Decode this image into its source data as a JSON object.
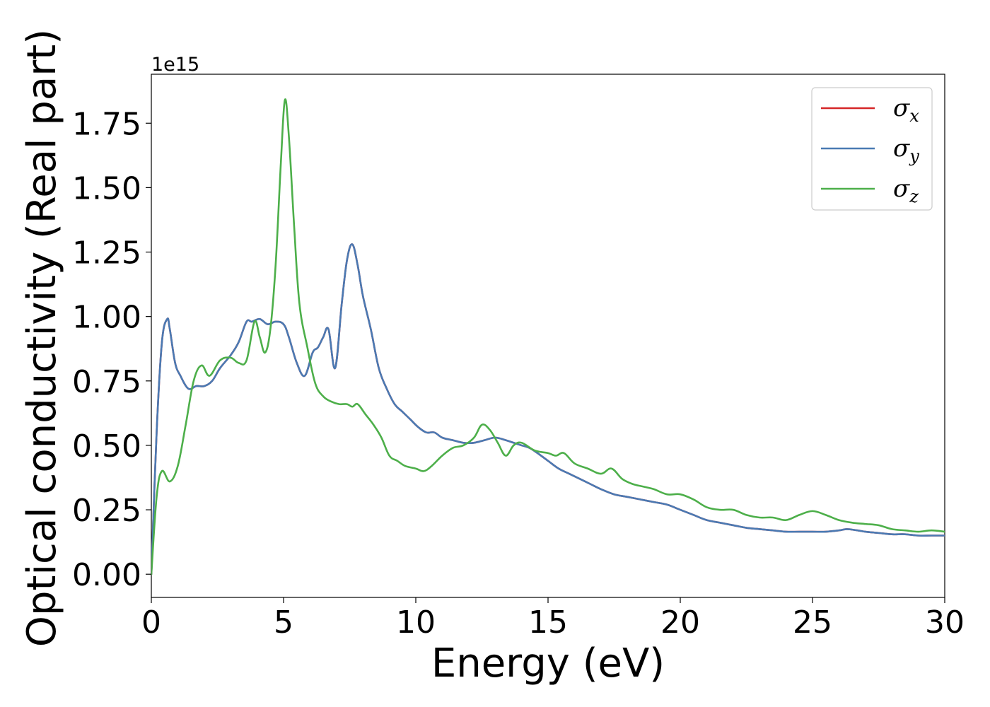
{
  "chart_data": {
    "type": "line",
    "title": "",
    "xlabel": "Energy (eV)",
    "ylabel": "Optical conductivity (Real part)",
    "y_offset_label": "1e15",
    "xlim": [
      0,
      30
    ],
    "ylim": [
      -0.09,
      1.94
    ],
    "y_multiplier": 1000000000000000.0,
    "grid": false,
    "legend_position": "top-right",
    "x_ticks": [
      0,
      5,
      10,
      15,
      20,
      25,
      30
    ],
    "x_tick_labels": [
      "0",
      "5",
      "10",
      "15",
      "20",
      "25",
      "30"
    ],
    "y_ticks": [
      0.0,
      0.25,
      0.5,
      0.75,
      1.0,
      1.25,
      1.5,
      1.75
    ],
    "y_tick_labels": [
      "0.00",
      "0.25",
      "0.50",
      "0.75",
      "1.00",
      "1.25",
      "1.50",
      "1.75"
    ],
    "series": [
      {
        "name": "σ",
        "subscript": "x",
        "color": "#d62728",
        "x": [
          0,
          0.2,
          0.4,
          0.6,
          0.7,
          0.9,
          1.1,
          1.4,
          1.7,
          2.0,
          2.3,
          2.6,
          3.0,
          3.3,
          3.6,
          3.8,
          4.1,
          4.4,
          4.7,
          5.0,
          5.2,
          5.5,
          5.8,
          6.1,
          6.3,
          6.5,
          6.7,
          6.95,
          7.2,
          7.4,
          7.6,
          7.8,
          8.0,
          8.3,
          8.6,
          8.9,
          9.2,
          9.5,
          9.8,
          10.1,
          10.4,
          10.7,
          11.0,
          11.4,
          11.8,
          12.2,
          12.6,
          13.0,
          13.4,
          13.7,
          14.0,
          14.3,
          14.6,
          15.0,
          15.4,
          15.8,
          16.2,
          16.6,
          17.0,
          17.5,
          18.0,
          18.5,
          19.0,
          19.5,
          20.0,
          20.5,
          21.0,
          21.5,
          22.0,
          22.5,
          23.0,
          23.5,
          24.0,
          24.5,
          25.0,
          25.5,
          26.0,
          26.3,
          26.7,
          27.0,
          27.5,
          28.0,
          28.5,
          29.0,
          29.5,
          30.0
        ],
        "y": [
          0.0,
          0.55,
          0.9,
          0.99,
          0.95,
          0.82,
          0.77,
          0.72,
          0.73,
          0.73,
          0.75,
          0.8,
          0.85,
          0.9,
          0.98,
          0.98,
          0.99,
          0.97,
          0.98,
          0.97,
          0.92,
          0.82,
          0.77,
          0.86,
          0.88,
          0.92,
          0.95,
          0.8,
          1.05,
          1.22,
          1.28,
          1.2,
          1.08,
          0.95,
          0.8,
          0.72,
          0.66,
          0.63,
          0.6,
          0.57,
          0.55,
          0.55,
          0.53,
          0.52,
          0.51,
          0.51,
          0.52,
          0.53,
          0.52,
          0.51,
          0.5,
          0.49,
          0.47,
          0.44,
          0.41,
          0.39,
          0.37,
          0.35,
          0.33,
          0.31,
          0.3,
          0.29,
          0.28,
          0.27,
          0.25,
          0.23,
          0.21,
          0.2,
          0.19,
          0.18,
          0.175,
          0.17,
          0.165,
          0.165,
          0.165,
          0.165,
          0.17,
          0.175,
          0.17,
          0.165,
          0.16,
          0.155,
          0.155,
          0.15,
          0.15,
          0.15
        ]
      },
      {
        "name": "σ",
        "subscript": "y",
        "color": "#4a7ab3",
        "x": [
          0,
          0.2,
          0.4,
          0.6,
          0.7,
          0.9,
          1.1,
          1.4,
          1.7,
          2.0,
          2.3,
          2.6,
          3.0,
          3.3,
          3.6,
          3.8,
          4.1,
          4.4,
          4.7,
          5.0,
          5.2,
          5.5,
          5.8,
          6.1,
          6.3,
          6.5,
          6.7,
          6.95,
          7.2,
          7.4,
          7.6,
          7.8,
          8.0,
          8.3,
          8.6,
          8.9,
          9.2,
          9.5,
          9.8,
          10.1,
          10.4,
          10.7,
          11.0,
          11.4,
          11.8,
          12.2,
          12.6,
          13.0,
          13.4,
          13.7,
          14.0,
          14.3,
          14.6,
          15.0,
          15.4,
          15.8,
          16.2,
          16.6,
          17.0,
          17.5,
          18.0,
          18.5,
          19.0,
          19.5,
          20.0,
          20.5,
          21.0,
          21.5,
          22.0,
          22.5,
          23.0,
          23.5,
          24.0,
          24.5,
          25.0,
          25.5,
          26.0,
          26.3,
          26.7,
          27.0,
          27.5,
          28.0,
          28.5,
          29.0,
          29.5,
          30.0
        ],
        "y": [
          0.0,
          0.55,
          0.9,
          0.99,
          0.95,
          0.82,
          0.77,
          0.72,
          0.73,
          0.73,
          0.75,
          0.8,
          0.85,
          0.9,
          0.98,
          0.98,
          0.99,
          0.97,
          0.98,
          0.97,
          0.92,
          0.82,
          0.77,
          0.86,
          0.88,
          0.92,
          0.95,
          0.8,
          1.05,
          1.22,
          1.28,
          1.2,
          1.08,
          0.95,
          0.8,
          0.72,
          0.66,
          0.63,
          0.6,
          0.57,
          0.55,
          0.55,
          0.53,
          0.52,
          0.51,
          0.51,
          0.52,
          0.53,
          0.52,
          0.51,
          0.5,
          0.49,
          0.47,
          0.44,
          0.41,
          0.39,
          0.37,
          0.35,
          0.33,
          0.31,
          0.3,
          0.29,
          0.28,
          0.27,
          0.25,
          0.23,
          0.21,
          0.2,
          0.19,
          0.18,
          0.175,
          0.17,
          0.165,
          0.165,
          0.165,
          0.165,
          0.17,
          0.175,
          0.17,
          0.165,
          0.16,
          0.155,
          0.155,
          0.15,
          0.15,
          0.15
        ]
      },
      {
        "name": "σ",
        "subscript": "z",
        "color": "#4daf4a",
        "x": [
          0,
          0.2,
          0.4,
          0.7,
          1.0,
          1.3,
          1.6,
          1.9,
          2.2,
          2.6,
          3.0,
          3.3,
          3.6,
          3.9,
          4.1,
          4.3,
          4.5,
          4.7,
          4.9,
          5.05,
          5.2,
          5.4,
          5.6,
          5.9,
          6.2,
          6.5,
          6.8,
          7.1,
          7.4,
          7.6,
          7.8,
          8.1,
          8.4,
          8.7,
          9.0,
          9.3,
          9.6,
          10.0,
          10.3,
          10.6,
          11.0,
          11.4,
          11.8,
          12.2,
          12.5,
          12.8,
          13.1,
          13.4,
          13.7,
          14.0,
          14.5,
          15.0,
          15.3,
          15.6,
          16.0,
          16.5,
          17.0,
          17.4,
          17.8,
          18.2,
          18.6,
          19.0,
          19.5,
          20.0,
          20.5,
          21.0,
          21.5,
          22.0,
          22.5,
          23.0,
          23.5,
          24.0,
          24.5,
          25.0,
          25.5,
          26.0,
          26.5,
          27.0,
          27.5,
          28.0,
          28.5,
          29.0,
          29.5,
          30.0
        ],
        "y": [
          0.0,
          0.3,
          0.4,
          0.36,
          0.42,
          0.58,
          0.75,
          0.81,
          0.77,
          0.83,
          0.84,
          0.82,
          0.83,
          0.98,
          0.92,
          0.86,
          0.95,
          1.2,
          1.6,
          1.84,
          1.7,
          1.35,
          1.05,
          0.88,
          0.74,
          0.69,
          0.67,
          0.66,
          0.66,
          0.65,
          0.66,
          0.62,
          0.58,
          0.53,
          0.46,
          0.44,
          0.42,
          0.41,
          0.4,
          0.42,
          0.46,
          0.49,
          0.5,
          0.53,
          0.58,
          0.56,
          0.51,
          0.46,
          0.5,
          0.51,
          0.48,
          0.47,
          0.46,
          0.47,
          0.43,
          0.41,
          0.39,
          0.41,
          0.37,
          0.35,
          0.34,
          0.33,
          0.31,
          0.31,
          0.29,
          0.26,
          0.25,
          0.25,
          0.23,
          0.22,
          0.22,
          0.21,
          0.23,
          0.245,
          0.23,
          0.21,
          0.2,
          0.195,
          0.19,
          0.175,
          0.17,
          0.165,
          0.17,
          0.165
        ]
      }
    ]
  }
}
